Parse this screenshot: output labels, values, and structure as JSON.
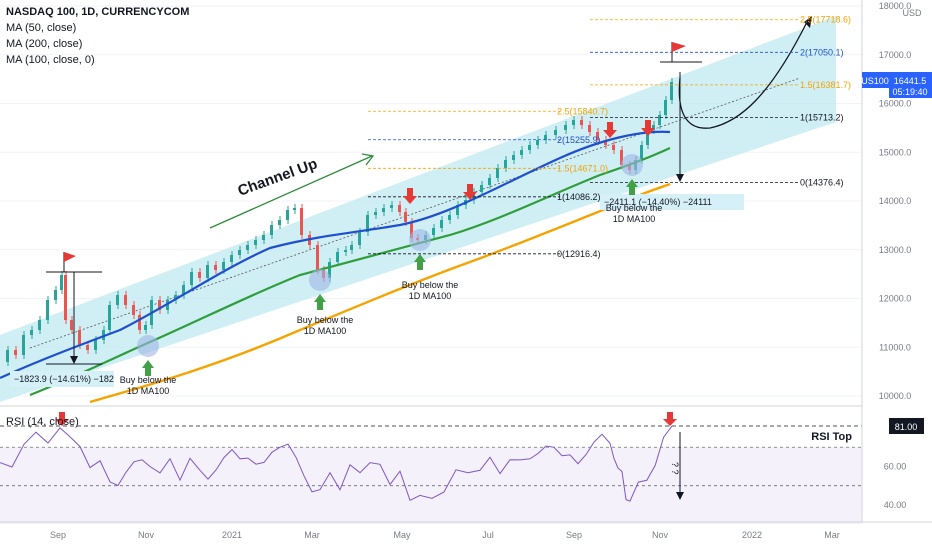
{
  "header": {
    "symbol_line": "NASDAQ 100, 1D, CURRENCYCOM",
    "ma50": "MA (50, close)",
    "ma200": "MA (200, close)",
    "ma100": "MA (100, close, 0)",
    "currency": "USD"
  },
  "price_axis": {
    "ticks": [
      "18000.0",
      "17000.0",
      "16000.0",
      "15000.0",
      "14000.0",
      "13000.0",
      "12000.0",
      "11000.0",
      "10000.0"
    ],
    "symbol_tag": "US100",
    "last_price": "16441.5",
    "countdown": "05:19:40"
  },
  "rsi_axis": {
    "ticks": [
      "60.00",
      "40.00"
    ],
    "top_tag": "81.00"
  },
  "time_axis": [
    "Sep",
    "Nov",
    "2021",
    "Mar",
    "May",
    "Jul",
    "Sep",
    "Nov",
    "2022",
    "Mar"
  ],
  "annotations": {
    "channel_label": "Channel Up",
    "rsi_label": "RSI (14, close)",
    "rsi_top": "RSI Top",
    "rsi_question": "? ?",
    "buy1": [
      "Buy below the",
      "1D MA100"
    ],
    "buy2": [
      "Buy below the",
      "1D MA100"
    ],
    "buy3": [
      "Buy below the",
      "1D MA100"
    ],
    "buy4": [
      "Buy below the",
      "1D MA100"
    ],
    "drop1": "−1823.9 (−14.61%) −182",
    "drop2": "−2411.1 (−14.40%) −24111"
  },
  "fib_upper": {
    "levels": [
      "2.5(17718.6)",
      "2(17050.1)",
      "1.5(16381.7)",
      "1(15713.2)",
      "0(14376.4)"
    ]
  },
  "fib_lower": {
    "levels": [
      "2.5(15840.7)",
      "2(15255.9)",
      "1.5(14671.0)",
      "1(14086.2)",
      "0(12916.4)"
    ]
  },
  "colors": {
    "channel": "#bfe9f2",
    "ma50": "#1f4fcf",
    "ma100": "#2f9e3b",
    "ma200": "#f5a300",
    "up": "#26a69a",
    "down": "#ef5350",
    "rsi": "#7e57c2",
    "rsi_band": "#ede7f6",
    "flag": "#e53935",
    "arrow_green": "#43a047"
  },
  "chart_data": {
    "type": "line",
    "title": "NASDAQ 100, 1D, CURRENCYCOM",
    "x": [
      "2020-08",
      "2020-09",
      "2020-10",
      "2020-11",
      "2020-12",
      "2021-01",
      "2021-02",
      "2021-03",
      "2021-04",
      "2021-05",
      "2021-06",
      "2021-07",
      "2021-08",
      "2021-09",
      "2021-10",
      "2021-11"
    ],
    "series": [
      {
        "name": "NASDAQ 100",
        "values": [
          10500,
          12200,
          11300,
          11900,
          12600,
          13200,
          13700,
          13100,
          14000,
          13300,
          14100,
          14900,
          15400,
          15500,
          15200,
          16441.5
        ]
      },
      {
        "name": "MA (50, close)",
        "values": [
          10400,
          11100,
          11400,
          11800,
          12300,
          12800,
          13300,
          13400,
          13600,
          13700,
          14000,
          14500,
          14900,
          15200,
          15200,
          15350
        ]
      },
      {
        "name": "MA (100, close, 0)",
        "values": [
          null,
          10300,
          10800,
          11200,
          11700,
          12200,
          12600,
          12900,
          13200,
          13400,
          13700,
          14000,
          14300,
          14600,
          14800,
          15000
        ]
      },
      {
        "name": "MA (200, close)",
        "values": [
          null,
          null,
          null,
          10000,
          10500,
          10900,
          11300,
          11700,
          12100,
          12500,
          12900,
          13300,
          13600,
          13900,
          14200,
          14400
        ]
      }
    ],
    "rsi": {
      "name": "RSI (14, close)",
      "top": 81.0,
      "values": [
        62,
        80,
        52,
        60,
        58,
        64,
        70,
        48,
        62,
        45,
        58,
        64,
        66,
        72,
        42,
        81
      ]
    },
    "ylim": [
      9800,
      18200
    ],
    "ylabel": "USD"
  }
}
